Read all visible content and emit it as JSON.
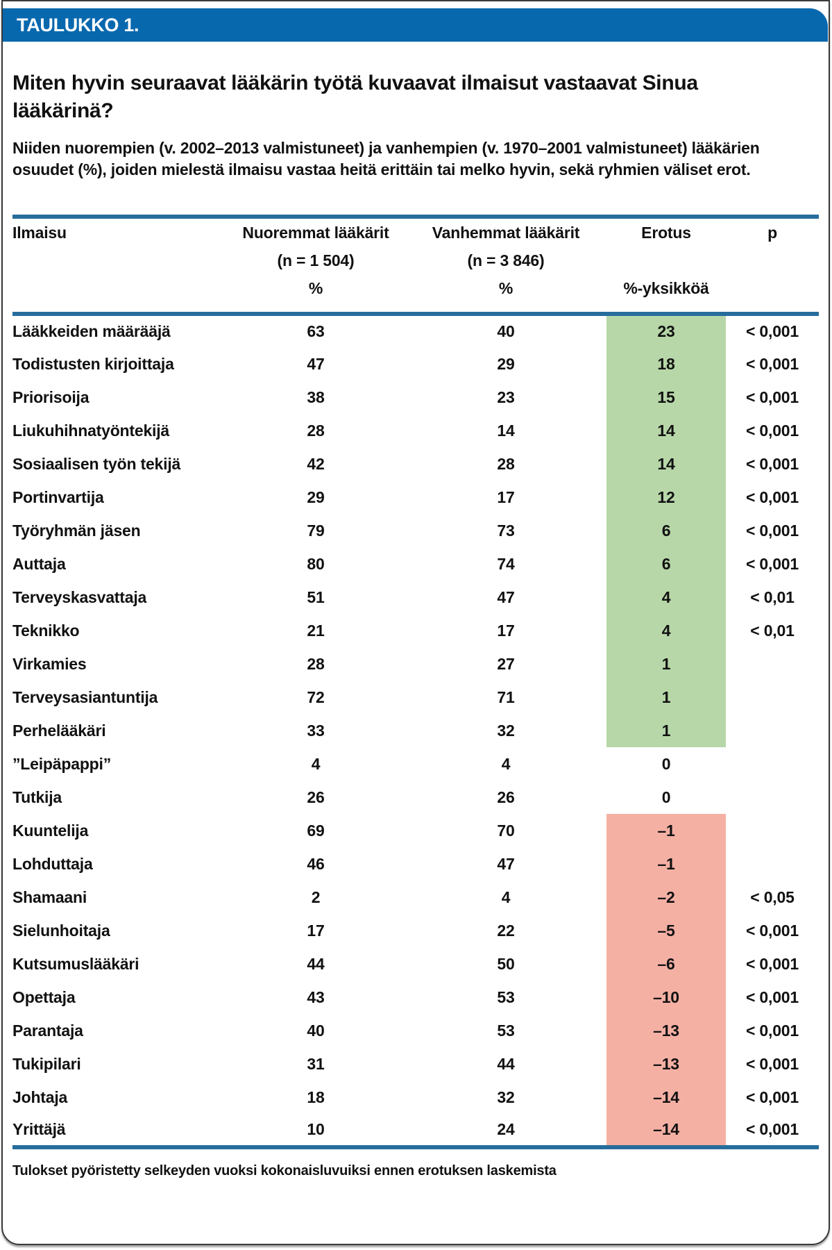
{
  "colors": {
    "header_blue": "#0868ae",
    "rule_blue": "#276d9b",
    "positive_green": "#b7d7a8",
    "negative_red": "#f5b0a4"
  },
  "card": {
    "tag": "TAULUKKO 1.",
    "title": "Miten hyvin seuraavat lääkärin työtä kuvaavat ilmaisut vastaavat Sinua lääkärinä?",
    "subtitle": "Niiden nuorempien (v. 2002–2013 valmistuneet) ja vanhempien (v. 1970–2001 valmistuneet) lääkärien osuudet (%), joiden mielestä ilmaisu vastaa heitä erittäin tai melko hyvin, sekä ryhmien väliset erot.",
    "footnote": "Tulokset pyöristetty selkeyden vuoksi kokonaisluvuiksi ennen erotuksen laskemista"
  },
  "table": {
    "columns": {
      "expression": "Ilmaisu",
      "young": {
        "line1": "Nuoremmat lääkärit",
        "line2": "(n = 1 504)",
        "line3": "%"
      },
      "old": {
        "line1": "Vanhemmat lääkärit",
        "line2": "(n = 3 846)",
        "line3": "%"
      },
      "difference": {
        "line1": "Erotus",
        "line2": "",
        "line3": "%-yksikköä"
      },
      "p": "p"
    },
    "rows": [
      {
        "expression": "Lääkkeiden määrääjä",
        "young": "63",
        "old": "40",
        "diff": "23",
        "p": "< 0,001",
        "highlight": "green"
      },
      {
        "expression": "Todistusten kirjoittaja",
        "young": "47",
        "old": "29",
        "diff": "18",
        "p": "< 0,001",
        "highlight": "green"
      },
      {
        "expression": "Priorisoija",
        "young": "38",
        "old": "23",
        "diff": "15",
        "p": "< 0,001",
        "highlight": "green"
      },
      {
        "expression": "Liukuhihnatyöntekijä",
        "young": "28",
        "old": "14",
        "diff": "14",
        "p": "< 0,001",
        "highlight": "green"
      },
      {
        "expression": "Sosiaalisen työn tekijä",
        "young": "42",
        "old": "28",
        "diff": "14",
        "p": "< 0,001",
        "highlight": "green"
      },
      {
        "expression": "Portinvartija",
        "young": "29",
        "old": "17",
        "diff": "12",
        "p": "< 0,001",
        "highlight": "green"
      },
      {
        "expression": "Työryhmän jäsen",
        "young": "79",
        "old": "73",
        "diff": "6",
        "p": "< 0,001",
        "highlight": "green"
      },
      {
        "expression": "Auttaja",
        "young": "80",
        "old": "74",
        "diff": "6",
        "p": "< 0,001",
        "highlight": "green"
      },
      {
        "expression": "Terveyskasvattaja",
        "young": "51",
        "old": "47",
        "diff": "4",
        "p": "< 0,01",
        "highlight": "green"
      },
      {
        "expression": "Teknikko",
        "young": "21",
        "old": "17",
        "diff": "4",
        "p": "< 0,01",
        "highlight": "green"
      },
      {
        "expression": "Virkamies",
        "young": "28",
        "old": "27",
        "diff": "1",
        "p": "",
        "highlight": "green"
      },
      {
        "expression": "Terveysasiantuntija",
        "young": "72",
        "old": "71",
        "diff": "1",
        "p": "",
        "highlight": "green"
      },
      {
        "expression": "Perhelääkäri",
        "young": "33",
        "old": "32",
        "diff": "1",
        "p": "",
        "highlight": "green"
      },
      {
        "expression": "”Leipäpappi”",
        "young": "4",
        "old": "4",
        "diff": "0",
        "p": "",
        "highlight": "none"
      },
      {
        "expression": "Tutkija",
        "young": "26",
        "old": "26",
        "diff": "0",
        "p": "",
        "highlight": "none"
      },
      {
        "expression": "Kuuntelija",
        "young": "69",
        "old": "70",
        "diff": "–1",
        "p": "",
        "highlight": "red"
      },
      {
        "expression": "Lohduttaja",
        "young": "46",
        "old": "47",
        "diff": "–1",
        "p": "",
        "highlight": "red"
      },
      {
        "expression": "Shamaani",
        "young": "2",
        "old": "4",
        "diff": "–2",
        "p": "< 0,05",
        "highlight": "red"
      },
      {
        "expression": "Sielunhoitaja",
        "young": "17",
        "old": "22",
        "diff": "–5",
        "p": "< 0,001",
        "highlight": "red"
      },
      {
        "expression": "Kutsumuslääkäri",
        "young": "44",
        "old": "50",
        "diff": "–6",
        "p": "< 0,001",
        "highlight": "red"
      },
      {
        "expression": "Opettaja",
        "young": "43",
        "old": "53",
        "diff": "–10",
        "p": "< 0,001",
        "highlight": "red"
      },
      {
        "expression": "Parantaja",
        "young": "40",
        "old": "53",
        "diff": "–13",
        "p": "< 0,001",
        "highlight": "red"
      },
      {
        "expression": "Tukipilari",
        "young": "31",
        "old": "44",
        "diff": "–13",
        "p": "< 0,001",
        "highlight": "red"
      },
      {
        "expression": "Johtaja",
        "young": "18",
        "old": "32",
        "diff": "–14",
        "p": "< 0,001",
        "highlight": "red"
      },
      {
        "expression": "Yrittäjä",
        "young": "10",
        "old": "24",
        "diff": "–14",
        "p": "< 0,001",
        "highlight": "red"
      }
    ]
  }
}
